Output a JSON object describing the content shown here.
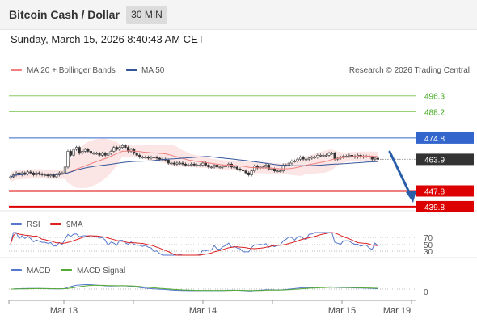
{
  "header": {
    "title": "Bitcoin Cash / Dollar",
    "timeframe": "30 MIN",
    "datetime": "Sunday, March 15, 2026 8:40:43 AM CET"
  },
  "legend": {
    "ma20_label": "MA 20 + Bollinger Bands",
    "ma50_label": "MA 50",
    "ma20_color": "#f08080",
    "ma50_color": "#335599",
    "credit": "Research © 2026 Trading Central"
  },
  "rsi_legend": {
    "rsi_label": "RSI",
    "ma_label": "9MA",
    "rsi_color": "#5577cc",
    "ma_color": "#dd2222"
  },
  "macd_legend": {
    "macd_label": "MACD",
    "signal_label": "MACD Signal",
    "macd_color": "#5577cc",
    "signal_color": "#55aa33"
  },
  "x_axis": {
    "labels": [
      "Mar 13",
      "Mar 14",
      "Mar 15",
      "Mar 19"
    ]
  },
  "colors": {
    "up": "#ffffff",
    "down": "#333333",
    "resistance": "#3366cc",
    "support": "#dd0000",
    "target": "#88cc66",
    "arrow": "#2a5ea8"
  },
  "chart_data": [
    {
      "type": "candlestick",
      "title": "Bitcoin Cash / Dollar",
      "timeframe": "30 MIN",
      "ylim": [
        434,
        504
      ],
      "current_price": 463.9,
      "levels": [
        {
          "value": 496.3,
          "kind": "target"
        },
        {
          "value": 488.2,
          "kind": "target"
        },
        {
          "value": 474.8,
          "kind": "resistance"
        },
        {
          "value": 447.8,
          "kind": "support"
        },
        {
          "value": 439.8,
          "kind": "support"
        }
      ],
      "close": [
        455.0,
        456.0,
        457.0,
        456.0,
        457.0,
        456.5,
        457.5,
        457.0,
        456.0,
        457.0,
        456.5,
        456.0,
        456.0,
        455.5,
        456.0,
        455.0,
        456.0,
        457.0,
        457.0,
        460.0,
        468.0,
        466.0,
        469.0,
        470.0,
        467.0,
        468.0,
        469.0,
        468.0,
        467.0,
        467.0,
        467.0,
        466.0,
        467.0,
        466.0,
        467.0,
        468.0,
        470.0,
        469.0,
        470.0,
        471.0,
        470.0,
        468.0,
        469.0,
        467.0,
        466.0,
        465.0,
        465.0,
        465.0,
        464.5,
        465.0,
        465.0,
        464.5,
        464.0,
        464.0,
        463.5,
        462.0,
        462.0,
        461.5,
        462.0,
        462.0,
        461.5,
        461.0,
        461.0,
        461.5,
        461.0,
        461.0,
        461.0,
        462.0,
        461.0,
        460.0,
        460.0,
        461.0,
        460.0,
        460.0,
        460.5,
        460.5,
        461.5,
        460.0,
        460.0,
        459.0,
        458.5,
        458.0,
        457.0,
        456.0,
        458.0,
        460.5,
        459.5,
        460.0,
        460.0,
        461.0,
        459.0,
        459.0,
        458.0,
        458.0,
        458.0,
        461.0,
        461.0,
        462.0,
        463.0,
        463.0,
        464.0,
        465.0,
        464.0,
        464.0,
        464.5,
        465.0,
        465.0,
        466.0,
        466.0,
        466.0,
        466.0,
        467.0,
        467.0,
        464.0,
        464.5,
        465.0,
        465.5,
        465.5,
        466.0,
        465.5,
        465.0,
        466.0,
        465.0,
        465.5,
        465.5,
        465.0,
        464.0,
        464.5,
        463.9
      ]
    },
    {
      "type": "line",
      "title": "RSI",
      "series": [
        {
          "name": "RSI"
        },
        {
          "name": "9MA"
        }
      ],
      "levels": [
        70,
        50,
        30
      ]
    },
    {
      "type": "line",
      "title": "MACD",
      "series": [
        {
          "name": "MACD"
        },
        {
          "name": "MACD Signal"
        }
      ],
      "levels": [
        0
      ]
    }
  ]
}
